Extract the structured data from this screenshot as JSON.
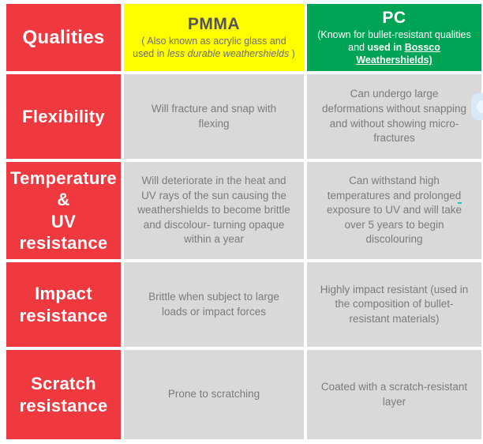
{
  "table": {
    "header": {
      "qualities_label": "Qualities",
      "pmma": {
        "title": "PMMA",
        "subtitle_prefix": "( Also known as acrylic glass and used in ",
        "subtitle_italic": "less durable weathershields",
        "subtitle_suffix": " )"
      },
      "pc": {
        "title": "PC",
        "subtitle_prefix": "(Known for bullet-resistant qualities and ",
        "subtitle_bold": "used in ",
        "subtitle_bold_underline": "Bossco Weathershields)"
      }
    },
    "rows": [
      {
        "quality": "Flexibility",
        "pmma": "Will fracture and snap with flexing",
        "pc": "Can undergo large deformations without snapping and without showing micro-fractures"
      },
      {
        "quality": "Temperature\n&\nUV\nresistance",
        "pmma": "Will deteriorate in the heat and UV rays of the sun causing the weathershields to become brittle and discolour- turning opaque within a year",
        "pc": "Can withstand high temperatures and prolonged exposure to UV and will take over 5 years to begin discolouring"
      },
      {
        "quality": "Impact\nresistance",
        "pmma": "Brittle when subject to large loads or impact forces",
        "pc": "Highly impact resistant (used in the composition of bullet-resistant materials)"
      },
      {
        "quality": "Scratch\nresistance",
        "pmma": "Prone to scratching",
        "pc": "Coated with a scratch-resistant layer"
      }
    ]
  },
  "colors": {
    "qualities_column_red": "#F0393E",
    "pmma_header_yellow": "#FFFF00",
    "pc_header_green": "#00A455",
    "data_cell_gray": "#D9D9D9",
    "body_text_gray": "#7B7B7B",
    "pmma_title_gray": "#545456",
    "side_widget_blue": "#D8E8F6"
  }
}
